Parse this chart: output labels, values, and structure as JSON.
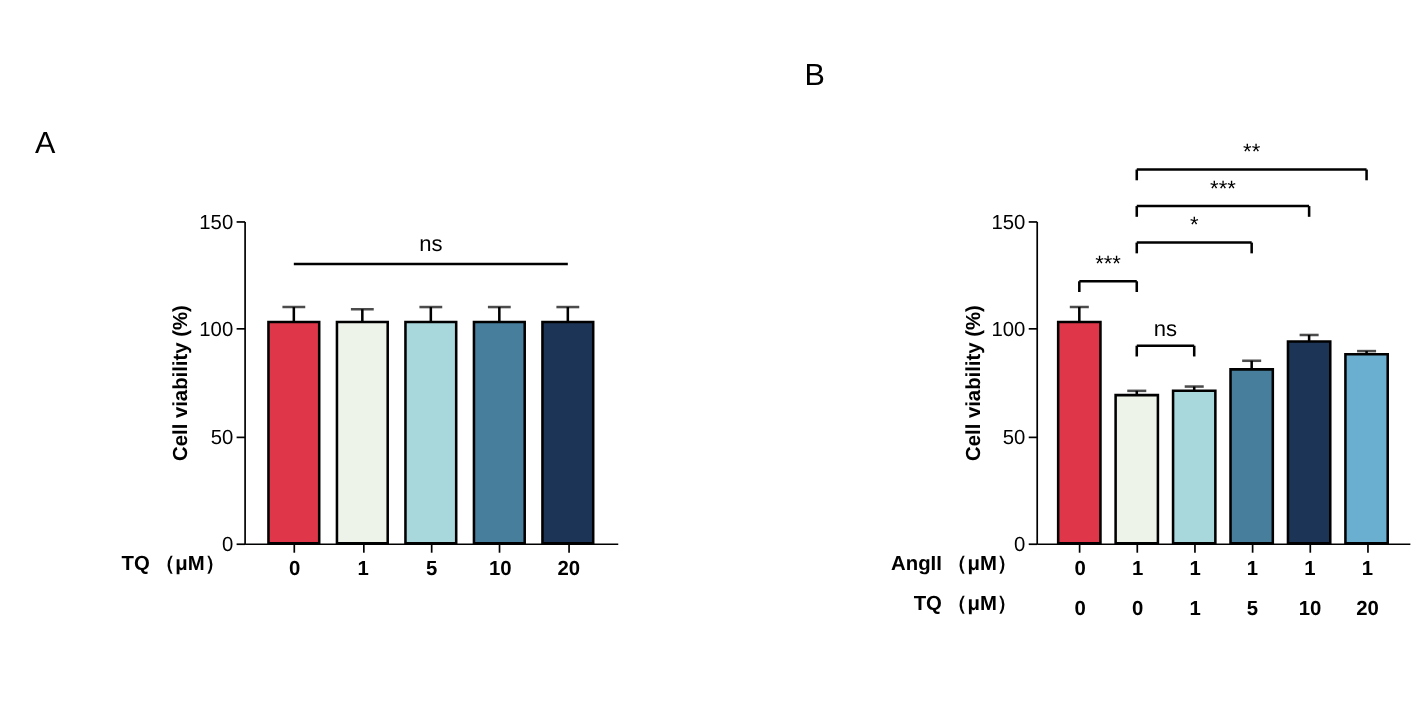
{
  "chart_data": [
    {
      "type": "bar",
      "title": "A",
      "ylabel": "Cell viability (%)",
      "xlabel": "TQ （μM）",
      "categories": [
        "0",
        "1",
        "5",
        "10",
        "20"
      ],
      "values": [
        103,
        103,
        103,
        103,
        103
      ],
      "errors": [
        7,
        6,
        7,
        7,
        7
      ],
      "colors": [
        "#e0364a",
        "#eef3ea",
        "#a8d8dc",
        "#467e9c",
        "#1c3557"
      ],
      "ylim": [
        0,
        150
      ],
      "yticks": [
        0,
        50,
        100,
        150
      ],
      "ref_lines": [
        {
          "axis": "y",
          "value": 130,
          "label": "ns"
        }
      ]
    },
    {
      "type": "bar",
      "title": "B",
      "ylabel": "Cell viability (%)",
      "xlabel": "AngII （μM）\nTQ （μM）",
      "categories": [
        "0\n0",
        "1\n0",
        "1\n1",
        "1\n5",
        "1\n10",
        "1\n20"
      ],
      "values": [
        103,
        69,
        71,
        81,
        94,
        88
      ],
      "errors": [
        7,
        2,
        2,
        4,
        3,
        1.5
      ],
      "colors": [
        "#e0364a",
        "#eef3ea",
        "#a8d8dc",
        "#467e9c",
        "#1c3557",
        "#6aaed0"
      ],
      "ylim": [
        0,
        150
      ],
      "yticks": [
        0,
        50,
        100,
        150
      ],
      "annotations": [
        "***",
        "ns",
        "*",
        "***",
        "**"
      ]
    }
  ]
}
